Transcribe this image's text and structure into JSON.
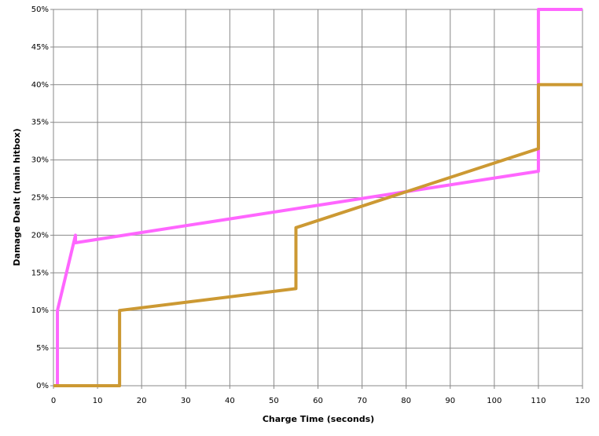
{
  "chart_data": {
    "type": "line",
    "x_label": "Charge Time (seconds)",
    "y_label": "Damage Dealt (main hitbox)",
    "series": [
      {
        "color": "#ff66ff",
        "x": [
          0,
          0.9,
          0.9,
          5,
          5,
          110,
          110,
          120
        ],
        "values": [
          0,
          0,
          10,
          20,
          19,
          28.5,
          50,
          50
        ]
      },
      {
        "color": "#cc9933",
        "x": [
          0,
          15,
          15,
          55,
          55,
          110,
          110,
          120
        ],
        "values": [
          0,
          0,
          10,
          12.9,
          21,
          31.5,
          40,
          40
        ]
      }
    ],
    "xlim": [
      0,
      120
    ],
    "xticks": [
      0,
      10,
      20,
      30,
      40,
      50,
      60,
      70,
      80,
      90,
      100,
      110,
      120
    ],
    "ylim": [
      0,
      50
    ],
    "yticks": [
      {
        "value": 0,
        "label": "0%"
      },
      {
        "value": 5,
        "label": "5%"
      },
      {
        "value": 10,
        "label": "10%"
      },
      {
        "value": 15,
        "label": "15%"
      },
      {
        "value": 20,
        "label": "20%"
      },
      {
        "value": 25,
        "label": "25%"
      },
      {
        "value": 30,
        "label": "30%"
      },
      {
        "value": 35,
        "label": "35%"
      },
      {
        "value": 40,
        "label": "40%"
      },
      {
        "value": 45,
        "label": "45%"
      },
      {
        "value": 50,
        "label": "50%"
      }
    ],
    "grid": true
  }
}
